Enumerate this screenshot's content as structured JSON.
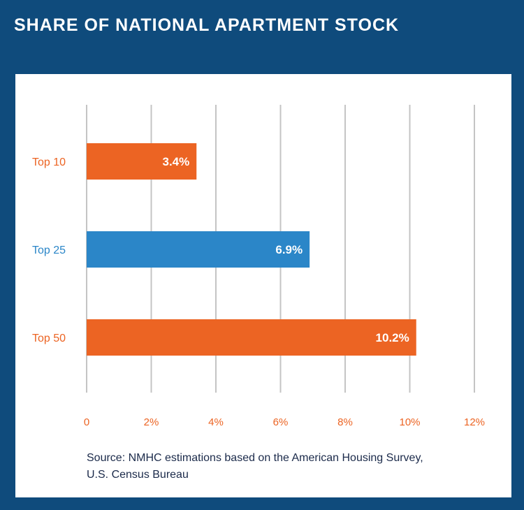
{
  "title": "SHARE OF NATIONAL APARTMENT STOCK",
  "chart_data": {
    "type": "bar",
    "orientation": "horizontal",
    "title": "SHARE OF NATIONAL APARTMENT STOCK",
    "categories": [
      "Top 10",
      "Top 25",
      "Top 50"
    ],
    "values": [
      3.4,
      6.9,
      10.2
    ],
    "value_labels": [
      "3.4%",
      "6.9%",
      "10.2%"
    ],
    "bar_colors": [
      "#ec6423",
      "#2b86c8",
      "#ec6423"
    ],
    "label_colors": [
      "#ec6423",
      "#2b86c8",
      "#ec6423"
    ],
    "xlim": [
      0,
      12
    ],
    "xticks": [
      0,
      2,
      4,
      6,
      8,
      10,
      12
    ],
    "xtick_labels": [
      "0",
      "2%",
      "4%",
      "6%",
      "8%",
      "10%",
      "12%"
    ],
    "xlabel": "",
    "ylabel": "",
    "grid": "vertical"
  },
  "source": {
    "line1": "Source: NMHC estimations based on the American Housing Survey,",
    "line2": "U.S. Census Bureau"
  },
  "colors": {
    "background": "#0f4b7c",
    "tick_text": "#ec6423",
    "grid": "#c4c4c4"
  }
}
